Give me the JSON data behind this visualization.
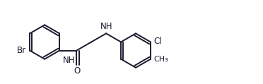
{
  "background": "#ffffff",
  "line_color": "#1a1a2e",
  "line_width": 1.4,
  "font_size": 8.5,
  "fig_width": 3.72,
  "fig_height": 1.19,
  "dpi": 100,
  "xlim": [
    0.0,
    9.5
  ],
  "ylim": [
    0.8,
    3.2
  ]
}
